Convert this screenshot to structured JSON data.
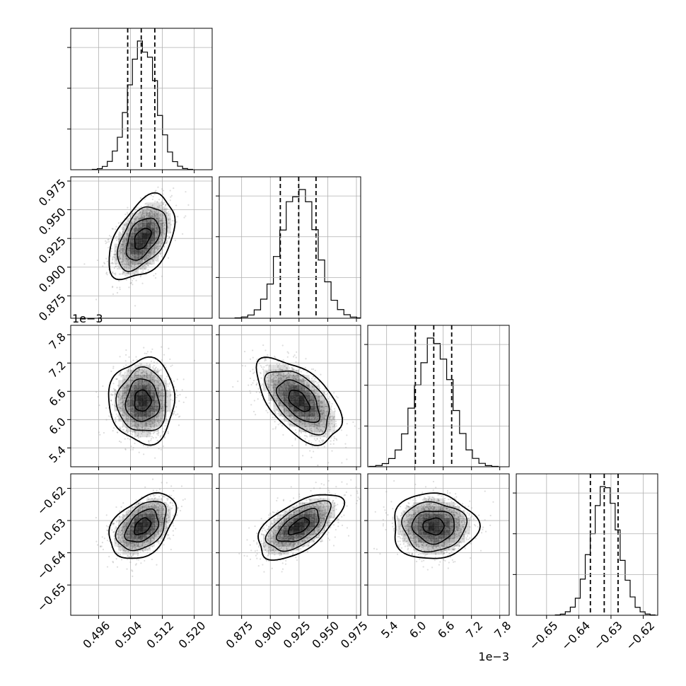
{
  "chart_data": {
    "type": "corner",
    "parameters": [
      {
        "range": [
          0.489,
          0.5245
        ],
        "ticks": [
          0.496,
          0.504,
          0.512,
          0.52
        ],
        "tick_labels": [
          "0.496",
          "0.504",
          "0.512",
          "0.520"
        ],
        "offset_label": "",
        "center": 0.507,
        "sigma": 0.0035,
        "quantiles": [
          0.5033,
          0.5067,
          0.5101
        ]
      },
      {
        "range": [
          0.8555,
          0.9787
        ],
        "ticks": [
          0.875,
          0.9,
          0.925,
          0.95,
          0.975
        ],
        "tick_labels": [
          "0.875",
          "0.900",
          "0.925",
          "0.950",
          "0.975"
        ],
        "offset_label": "",
        "center": 0.925,
        "sigma": 0.0155,
        "quantiles": [
          0.9087,
          0.9247,
          0.9398
        ]
      },
      {
        "range": [
          5.0,
          8.0
        ],
        "ticks": [
          5.4,
          6.0,
          6.6,
          7.2,
          7.8
        ],
        "tick_labels": [
          "5.4",
          "6.0",
          "6.6",
          "7.2",
          "7.8"
        ],
        "offset_label": "1e−3",
        "center": 6.4,
        "sigma": 0.38,
        "quantiles": [
          6.01,
          6.4,
          6.78
        ]
      },
      {
        "range": [
          -0.6594,
          -0.6155
        ],
        "ticks": [
          -0.65,
          -0.64,
          -0.63,
          -0.62
        ],
        "tick_labels": [
          "−0.65",
          "−0.64",
          "−0.63",
          "−0.62"
        ],
        "offset_label": "",
        "center": -0.6318,
        "sigma": 0.0043,
        "quantiles": [
          -0.6364,
          -0.6321,
          -0.6278
        ]
      }
    ],
    "correlations": [
      {
        "pair": [
          1,
          0
        ],
        "rho": 0.45
      },
      {
        "pair": [
          2,
          0
        ],
        "rho": 0.0
      },
      {
        "pair": [
          2,
          1
        ],
        "rho": -0.55
      },
      {
        "pair": [
          3,
          0
        ],
        "rho": 0.42
      },
      {
        "pair": [
          3,
          1
        ],
        "rho": 0.6
      },
      {
        "pair": [
          3,
          2
        ],
        "rho": 0.0
      }
    ],
    "histogram_bins": 20,
    "contour_levels_sigma": [
      0.5,
      1.0,
      1.5,
      2.0
    ],
    "grid": true,
    "colors": {
      "lines": "#000000",
      "points": "#9e9e9e",
      "grid": "#b0b0b0",
      "density": "#000000"
    }
  }
}
